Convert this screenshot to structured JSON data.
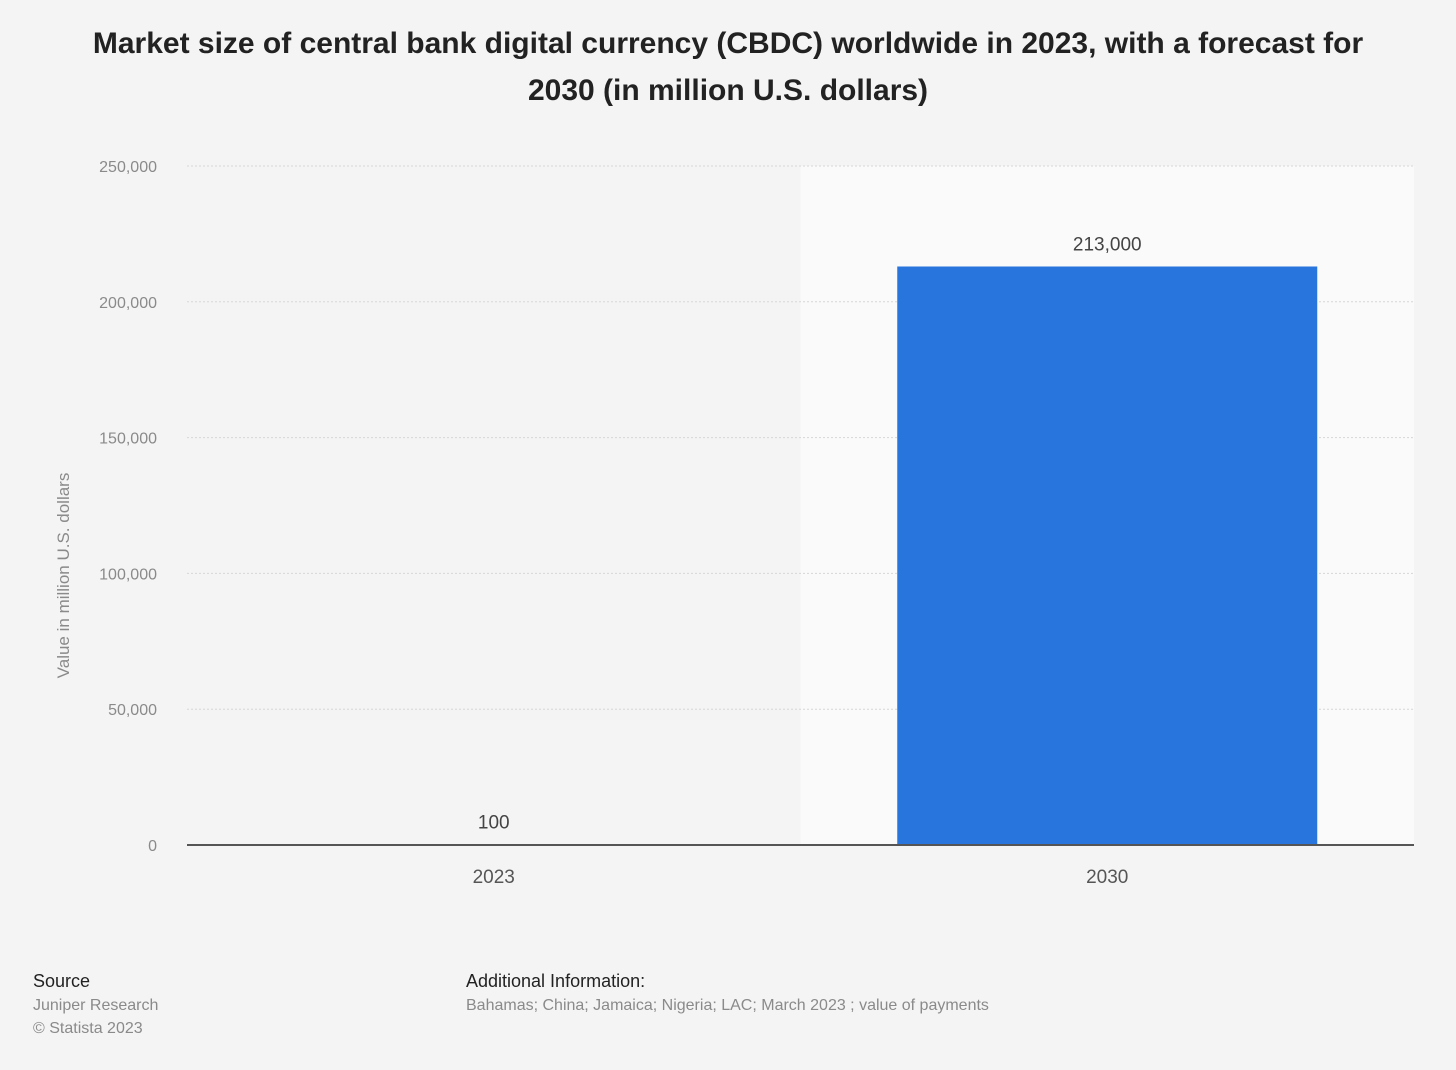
{
  "chart_data": {
    "type": "bar",
    "title": "Market size of central bank digital currency (CBDC) worldwide in 2023, with a forecast for 2030 (in million U.S. dollars)",
    "categories": [
      "2023",
      "2030"
    ],
    "values": [
      100,
      213000
    ],
    "data_labels": [
      "100",
      "213,000"
    ],
    "xlabel": "",
    "ylabel": "Value in million U.S. dollars",
    "ylim": [
      0,
      250000
    ],
    "yticks": [
      0,
      50000,
      100000,
      150000,
      200000,
      250000
    ],
    "ytick_labels": [
      "0",
      "50,000",
      "100,000",
      "150,000",
      "200,000",
      "250,000"
    ],
    "forecast_highlight_category": "2030",
    "grid": true,
    "bar_color": "#2876dd"
  },
  "footer": {
    "source_heading": "Source",
    "source_lines": [
      "Juniper Research",
      "© Statista 2023"
    ],
    "info_heading": "Additional Information:",
    "info_text": "Bahamas; China; Jamaica; Nigeria; LAC; March 2023 ; value of payments"
  }
}
